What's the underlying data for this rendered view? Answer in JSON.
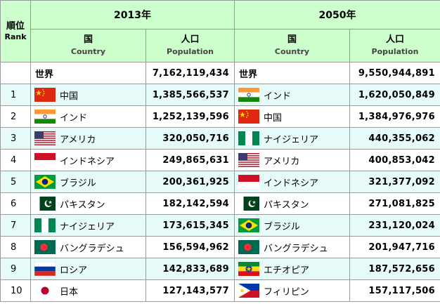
{
  "header": {
    "rank_jp": "順位",
    "rank_en": "Rank",
    "year_a": "2013年",
    "year_b": "2050年",
    "country_jp": "国",
    "country_en": "Country",
    "pop_jp": "人口",
    "pop_en": "Population"
  },
  "world": {
    "label": "世界",
    "pop_2013": "7,162,119,434",
    "pop_2050": "9,550,944,891"
  },
  "rows": [
    {
      "rank": "1",
      "c2013": "中国",
      "f2013": "china-flag-icon",
      "p2013": "1,385,566,537",
      "c2050": "インド",
      "f2050": "india-flag-icon",
      "p2050": "1,620,050,849"
    },
    {
      "rank": "2",
      "c2013": "インド",
      "f2013": "india-flag-icon",
      "p2013": "1,252,139,596",
      "c2050": "中国",
      "f2050": "china-flag-icon",
      "p2050": "1,384,976,976"
    },
    {
      "rank": "3",
      "c2013": "アメリカ",
      "f2013": "usa-flag-icon",
      "p2013": "320,050,716",
      "c2050": "ナイジェリア",
      "f2050": "nigeria-flag-icon",
      "p2050": "440,355,062"
    },
    {
      "rank": "4",
      "c2013": "インドネシア",
      "f2013": "indonesia-flag-icon",
      "p2013": "249,865,631",
      "c2050": "アメリカ",
      "f2050": "usa-flag-icon",
      "p2050": "400,853,042"
    },
    {
      "rank": "5",
      "c2013": "ブラジル",
      "f2013": "brazil-flag-icon",
      "p2013": "200,361,925",
      "c2050": "インドネシア",
      "f2050": "indonesia-flag-icon",
      "p2050": "321,377,092"
    },
    {
      "rank": "6",
      "c2013": "パキスタン",
      "f2013": "pakistan-flag-icon",
      "p2013": "182,142,594",
      "c2050": "パキスタン",
      "f2050": "pakistan-flag-icon",
      "p2050": "271,081,825"
    },
    {
      "rank": "7",
      "c2013": "ナイジェリア",
      "f2013": "nigeria-flag-icon",
      "p2013": "173,615,345",
      "c2050": "ブラジル",
      "f2050": "brazil-flag-icon",
      "p2050": "231,120,024"
    },
    {
      "rank": "8",
      "c2013": "バングラデシュ",
      "f2013": "bangladesh-flag-icon",
      "p2013": "156,594,962",
      "c2050": "バングラデシュ",
      "f2050": "bangladesh-flag-icon",
      "p2050": "201,947,716"
    },
    {
      "rank": "9",
      "c2013": "ロシア",
      "f2013": "russia-flag-icon",
      "p2013": "142,833,689",
      "c2050": "エチオピア",
      "f2050": "ethiopia-flag-icon",
      "p2050": "187,572,656"
    },
    {
      "rank": "10",
      "c2013": "日本",
      "f2013": "japan-flag-icon",
      "p2013": "127,143,577",
      "c2050": "フィリピン",
      "f2050": "philippines-flag-icon",
      "p2050": "157,117,506"
    }
  ]
}
